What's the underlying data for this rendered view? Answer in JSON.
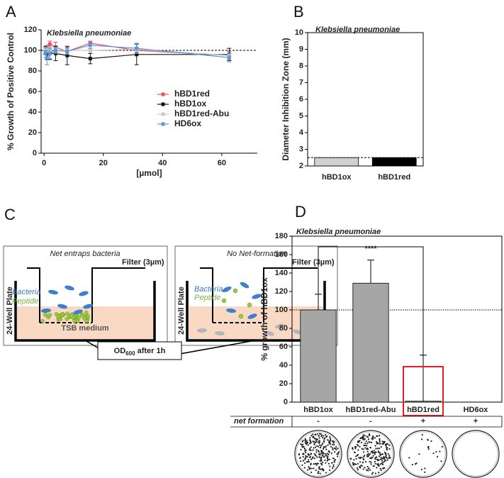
{
  "chart_data": [
    {
      "type": "line",
      "panel_label": "A",
      "title": "Klebsiella pneumoniae",
      "xlabel": "[µmol]",
      "ylabel": "% Growth of Positive Control",
      "x": [
        0.49,
        0.98,
        1.95,
        3.9,
        7.8,
        15.6,
        31.25,
        62.5
      ],
      "series": [
        {
          "name": "hBD1red",
          "color": "#e8505b",
          "values": [
            100,
            101,
            106,
            103,
            99,
            107,
            100,
            95
          ],
          "errors": [
            3,
            4,
            3,
            5,
            4,
            2,
            3,
            4
          ]
        },
        {
          "name": "hBD1ox",
          "color": "#111111",
          "values": [
            100,
            96,
            97,
            97,
            95,
            92,
            96,
            96
          ],
          "errors": [
            4,
            5,
            6,
            7,
            9,
            5,
            10,
            6
          ]
        },
        {
          "name": "hBD1red-Abu",
          "color": "#c8c8c8",
          "values": [
            100,
            100,
            101,
            100,
            100,
            100,
            101,
            95
          ],
          "errors": [
            2,
            2,
            2,
            2,
            2,
            2,
            2,
            2
          ]
        },
        {
          "name": "HD6ox",
          "color": "#5b9bd5",
          "values": [
            98,
            93,
            97,
            100,
            99,
            105,
            102,
            93
          ],
          "errors": [
            5,
            7,
            5,
            3,
            3,
            3,
            5,
            4
          ]
        }
      ],
      "xlim": [
        -1,
        72
      ],
      "xticks": [
        0,
        20,
        40,
        60
      ],
      "ylim": [
        0,
        120
      ],
      "yticks": [
        0,
        20,
        40,
        60,
        80,
        100,
        120
      ],
      "reference_line": 100
    },
    {
      "type": "bar",
      "panel_label": "B",
      "title": "Klebsiella pneumoniae",
      "ylabel": "Diameter Inhibition Zone (mm)",
      "categories": [
        "hBD1ox",
        "hBD1red"
      ],
      "values": [
        2.5,
        2.5
      ],
      "colors": [
        "#d0d0d0",
        "#000000"
      ],
      "ylim": [
        2,
        10
      ],
      "yticks": [
        2,
        3,
        4,
        5,
        6,
        7,
        8,
        9,
        10
      ],
      "reference_line": 2.5
    },
    {
      "type": "bar",
      "panel_label": "D",
      "title": "Klebsiella pneumoniae",
      "ylabel": "% growth of hBD1ox",
      "categories": [
        "hBD1ox",
        "hBD1red-Abu",
        "hBD1red",
        "HD6ox"
      ],
      "values": [
        100,
        129,
        1,
        0
      ],
      "errors": [
        17,
        25,
        50,
        0
      ],
      "colors": [
        "#a6a6a6",
        "#a6a6a6",
        "#a6a6a6",
        "#a6a6a6"
      ],
      "ylim": [
        0,
        180
      ],
      "yticks": [
        0,
        20,
        40,
        60,
        80,
        100,
        120,
        140,
        160,
        180
      ],
      "reference_line": 100,
      "significance": "****",
      "significance_pair": [
        "hBD1ox",
        "hBD1red"
      ],
      "highlight": "hBD1red",
      "row_label": "net formation",
      "row_values": [
        "-",
        "-",
        "+",
        "+"
      ]
    }
  ],
  "diagram": {
    "panel_label": "C",
    "left": {
      "title": "Net entraps bacteria",
      "filter": "Filter (3µm)",
      "bacteria": "Bacteria",
      "peptide": "Peptide",
      "plate": "24-Well Plate",
      "medium": "TSB medium"
    },
    "right": {
      "title": "No Net-formation",
      "filter": "Filter (3µm)",
      "bacteria": "Bacteria",
      "peptide": "Peptide",
      "plate": "24-Well Plate"
    },
    "readout": {
      "main": "OD",
      "sub": "600",
      "rest": " after 1h"
    }
  }
}
